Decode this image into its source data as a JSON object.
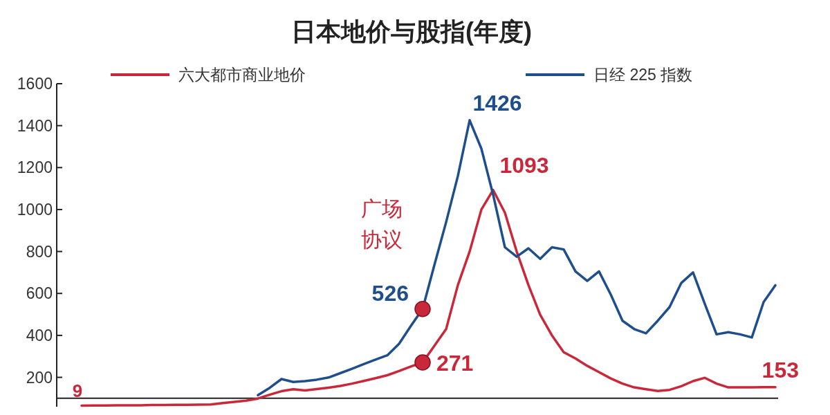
{
  "chart_data": {
    "type": "line",
    "title": "日本地价与股指(年度)",
    "categories": [
      null,
      null,
      null,
      null,
      null,
      null,
      null,
      null,
      null,
      null,
      null,
      null,
      null,
      null,
      null,
      null,
      null,
      null,
      null,
      null,
      null,
      null,
      null,
      null,
      null,
      null,
      null,
      null,
      null,
      null,
      null,
      null,
      null,
      null,
      null,
      null,
      null,
      null,
      null,
      null,
      null,
      null,
      null,
      null,
      null,
      null,
      null,
      null,
      null,
      null,
      null,
      null,
      null,
      null,
      null,
      null,
      null,
      null,
      null,
      null
    ],
    "ylim": [
      60,
      1600
    ],
    "yticks": [
      200,
      400,
      600,
      800,
      1000,
      1200,
      1400,
      1600
    ],
    "grid": false,
    "legend": "top",
    "marker": "none",
    "line_style": "solid",
    "series": [
      {
        "name": "六大都市商业地价",
        "color": "#c8283a",
        "values": [
          65,
          66,
          66,
          67,
          67,
          67,
          68,
          68,
          69,
          69,
          70,
          71,
          77,
          83,
          89,
          99,
          117,
          134,
          143,
          137,
          144,
          151,
          159,
          170,
          183,
          196,
          210,
          230,
          252,
          271,
          350,
          430,
          640,
          800,
          1000,
          1093,
          985,
          800,
          640,
          498,
          400,
          320,
          290,
          255,
          225,
          195,
          170,
          152,
          143,
          135,
          140,
          158,
          182,
          198,
          170,
          152,
          152,
          152,
          153,
          153
        ],
        "value_labels": [
          null,
          null,
          null,
          null,
          null,
          null,
          null,
          null,
          null,
          null,
          null,
          null,
          null,
          null,
          null,
          null,
          null,
          null,
          null,
          null,
          null,
          null,
          null,
          null,
          null,
          null,
          null,
          null,
          null,
          "271",
          null,
          null,
          null,
          null,
          null,
          "1093",
          null,
          null,
          null,
          null,
          null,
          null,
          null,
          null,
          null,
          null,
          null,
          null,
          null,
          null,
          null,
          null,
          null,
          null,
          null,
          null,
          null,
          null,
          null,
          "153"
        ]
      },
      {
        "name": "日经 225 指数",
        "color": "#1f4e8c",
        "values": [
          null,
          null,
          null,
          null,
          null,
          null,
          null,
          null,
          null,
          null,
          null,
          null,
          null,
          null,
          null,
          115,
          150,
          192,
          178,
          182,
          189,
          199,
          220,
          241,
          263,
          285,
          305,
          360,
          445,
          526,
          735,
          940,
          1160,
          1426,
          1290,
          1070,
          820,
          775,
          815,
          765,
          820,
          810,
          705,
          660,
          705,
          595,
          470,
          430,
          410,
          470,
          535,
          650,
          700,
          550,
          405,
          415,
          405,
          390,
          559,
          639
        ],
        "value_labels": [
          null,
          null,
          null,
          null,
          null,
          null,
          null,
          null,
          null,
          null,
          null,
          null,
          null,
          null,
          null,
          null,
          null,
          null,
          null,
          null,
          null,
          null,
          null,
          null,
          null,
          null,
          null,
          null,
          null,
          "526",
          null,
          null,
          null,
          "1426",
          null,
          null,
          null,
          null,
          null,
          null,
          null,
          null,
          null,
          null,
          null,
          null,
          null,
          null,
          null,
          null,
          null,
          null,
          null,
          null,
          null,
          null,
          null,
          null,
          null,
          null
        ]
      }
    ],
    "ref_lines": [
      {
        "axis": "y",
        "value": 100,
        "color": "#222222"
      }
    ],
    "annotations": [
      "9",
      "广场协议"
    ]
  }
}
